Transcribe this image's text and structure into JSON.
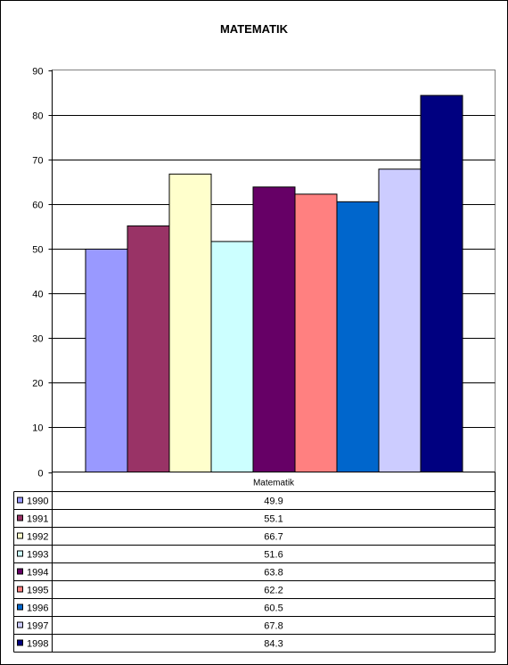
{
  "chart_data": {
    "type": "bar",
    "title": "MATEMATIK",
    "category": "Matematik",
    "ylim": [
      0,
      90
    ],
    "yticks": [
      "0",
      "10",
      "20",
      "30",
      "40",
      "50",
      "60",
      "70",
      "80",
      "90"
    ],
    "grid": true,
    "legend": "data-table-below",
    "series": [
      {
        "name": "1990",
        "value": 49.9,
        "label": "49.9",
        "color": "#9999FF"
      },
      {
        "name": "1991",
        "value": 55.1,
        "label": "55.1",
        "color": "#993366"
      },
      {
        "name": "1992",
        "value": 66.7,
        "label": "66.7",
        "color": "#FFFFCC"
      },
      {
        "name": "1993",
        "value": 51.6,
        "label": "51.6",
        "color": "#CCFFFF"
      },
      {
        "name": "1994",
        "value": 63.8,
        "label": "63.8",
        "color": "#660066"
      },
      {
        "name": "1995",
        "value": 62.2,
        "label": "62.2",
        "color": "#FF8080"
      },
      {
        "name": "1996",
        "value": 60.5,
        "label": "60.5",
        "color": "#0066CC"
      },
      {
        "name": "1997",
        "value": 67.8,
        "label": "67.8",
        "color": "#CCCCFF"
      },
      {
        "name": "1998",
        "value": 84.3,
        "label": "84.3",
        "color": "#000080"
      }
    ]
  }
}
